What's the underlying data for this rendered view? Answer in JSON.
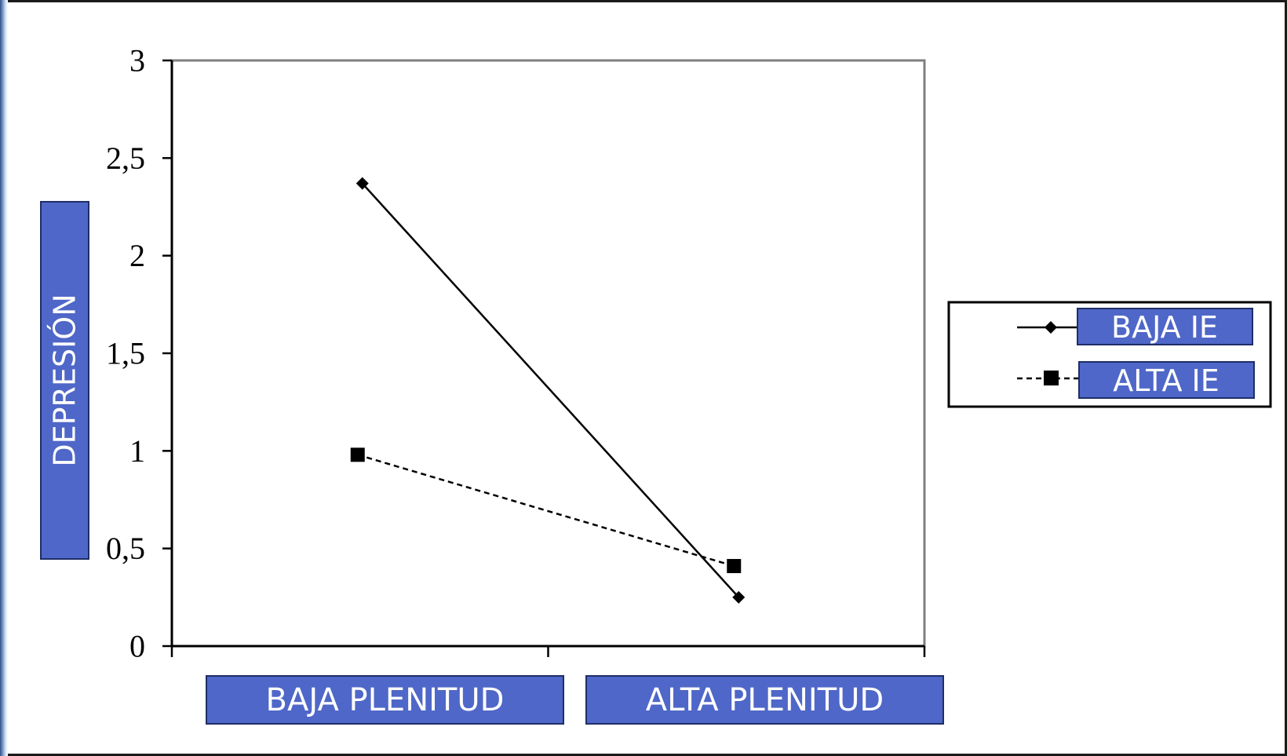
{
  "colors": {
    "label_box_fill": "#4F67C8",
    "label_box_border": "#1F2E66",
    "label_text": "#FFFFFF",
    "series_line": "#000000",
    "plot_border": "#7F7F7F"
  },
  "chart_data": {
    "type": "line",
    "categories": [
      "BAJA PLENITUD",
      "ALTA PLENITUD"
    ],
    "series": [
      {
        "name": "BAJA IE",
        "values": [
          2.37,
          0.25
        ],
        "line_style": "solid",
        "marker": "diamond"
      },
      {
        "name": "ALTA IE",
        "values": [
          0.98,
          0.41
        ],
        "line_style": "dashed",
        "marker": "square"
      }
    ],
    "ylabel": "DEPRESIÓN",
    "ylim": [
      0,
      3
    ],
    "yticks": [
      "0",
      "0,5",
      "1",
      "1,5",
      "2",
      "2,5",
      "3"
    ],
    "grid": false,
    "legend_position": "right"
  }
}
